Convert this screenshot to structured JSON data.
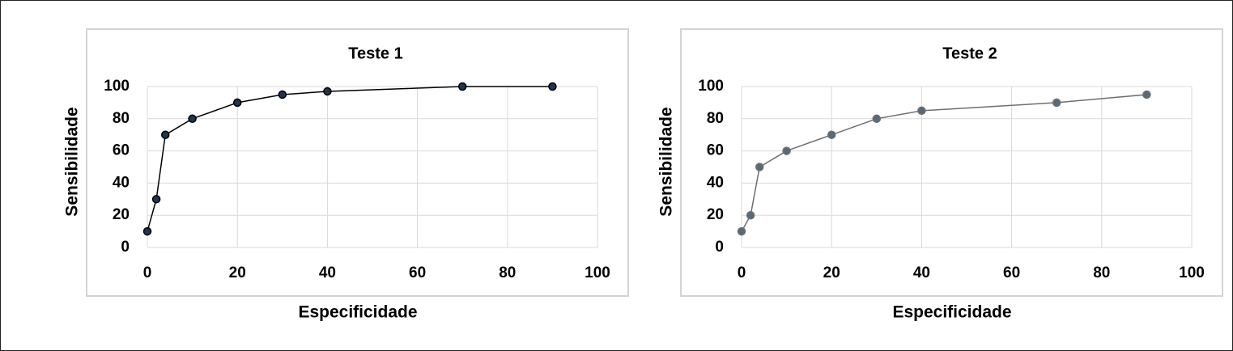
{
  "chart_data": [
    {
      "type": "line",
      "title": "Teste 1",
      "x_label": "Especificidade",
      "y_label": "Sensibilidade",
      "x": [
        0,
        2,
        4,
        10,
        20,
        30,
        40,
        70,
        90
      ],
      "values": [
        10,
        30,
        70,
        80,
        90,
        95,
        97,
        100,
        100
      ],
      "color": "#000000",
      "marker_color": "#1f3550",
      "xlim": [
        0,
        100
      ],
      "ylim": [
        0,
        100
      ],
      "xticks": [
        0,
        20,
        40,
        60,
        80,
        100
      ],
      "yticks": [
        0,
        20,
        40,
        60,
        80,
        100
      ],
      "grid": true
    },
    {
      "type": "line",
      "title": "Teste 2",
      "x_label": "Especificidade",
      "y_label": "Sensibilidade",
      "x": [
        0,
        2,
        4,
        10,
        20,
        30,
        40,
        70,
        90
      ],
      "values": [
        10,
        20,
        50,
        60,
        70,
        80,
        85,
        90,
        95
      ],
      "color": "#6e6e6e",
      "marker_color": "#566a7a",
      "xlim": [
        0,
        100
      ],
      "ylim": [
        0,
        100
      ],
      "xticks": [
        0,
        20,
        40,
        60,
        80,
        100
      ],
      "yticks": [
        0,
        20,
        40,
        60,
        80,
        100
      ],
      "grid": true
    }
  ]
}
